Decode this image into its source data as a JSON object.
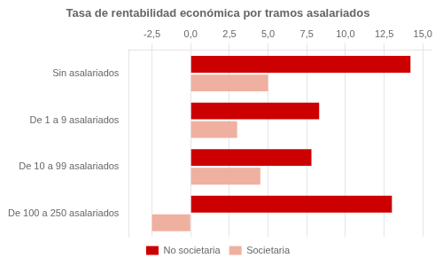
{
  "chart_data": {
    "type": "bar",
    "orientation": "horizontal",
    "title": "Tasa de rentabilidad económica por tramos asalariados",
    "categories": [
      "Sin asalariados",
      "De 1 a 9 asalariados",
      "De 10 a 99 asalariados",
      "De 100 a 250 asalariados"
    ],
    "series": [
      {
        "name": "No societaria",
        "color": "#cc0000",
        "values": [
          14.2,
          8.3,
          7.8,
          13.0
        ]
      },
      {
        "name": "Societaria",
        "color": "#f0b0a0",
        "values": [
          5.0,
          3.0,
          4.5,
          -2.5
        ]
      }
    ],
    "xlim": [
      -4.0,
      15.5
    ],
    "xticks": [
      {
        "value": -2.5,
        "label": "-2,5"
      },
      {
        "value": 0.0,
        "label": "0,0"
      },
      {
        "value": 2.5,
        "label": "2,5"
      },
      {
        "value": 5.0,
        "label": "5,0"
      },
      {
        "value": 7.5,
        "label": "7,5"
      },
      {
        "value": 10.0,
        "label": "10,0"
      },
      {
        "value": 12.5,
        "label": "12,5"
      },
      {
        "value": 15.0,
        "label": "15,0"
      }
    ],
    "grid": true,
    "legend": "bottom"
  }
}
